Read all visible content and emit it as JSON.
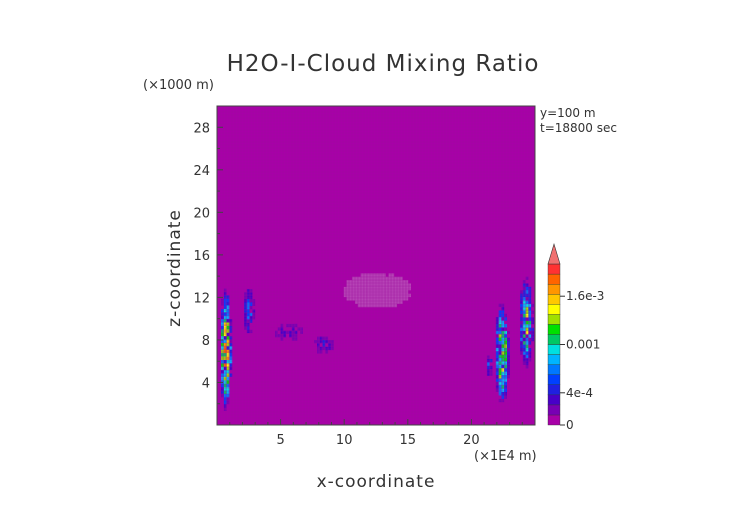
{
  "chart_data": {
    "type": "heatmap",
    "title": "H2O-I-Cloud Mixing Ratio",
    "xlabel": "x-coordinate",
    "ylabel": "z-coordinate",
    "x_unit": "(×1E4 m)",
    "y_unit": "(×1000 m)",
    "annotations": [
      "y=100 m",
      "t=18800 sec"
    ],
    "xlim": [
      0,
      25
    ],
    "ylim": [
      0,
      30
    ],
    "x_ticks": [
      5,
      10,
      15,
      20
    ],
    "y_ticks": [
      4,
      8,
      12,
      16,
      20,
      24,
      28
    ],
    "grid": false,
    "colorbar": {
      "tick_labels": [
        "0",
        "4e-4",
        "0.001",
        "1.6e-3"
      ],
      "tick_values": [
        0,
        0.0004,
        0.001,
        0.0016
      ],
      "max": 0.002,
      "colors": [
        "#a800a8",
        "#7800b4",
        "#4800c8",
        "#2020e0",
        "#0040ff",
        "#0078ff",
        "#00b4ff",
        "#00e0e0",
        "#00c864",
        "#00e000",
        "#a0e000",
        "#ffff00",
        "#ffc800",
        "#ff9600",
        "#ff6400",
        "#ff3232"
      ],
      "extend_color": "#f07070"
    },
    "background_color": "#a800a8",
    "regions": [
      {
        "name": "left-edge-column",
        "x": 0.6,
        "z": 7,
        "width": 1.0,
        "height": 12,
        "peak": 0.0016
      },
      {
        "name": "column-x3",
        "x": 2.4,
        "z": 10.5,
        "width": 1.0,
        "height": 5,
        "peak": 0.0006
      },
      {
        "name": "layer-x5",
        "x": 5.5,
        "z": 8.6,
        "width": 3.2,
        "height": 2.0,
        "peak": 0.0003
      },
      {
        "name": "layer-x8",
        "x": 8.2,
        "z": 7.4,
        "width": 2.0,
        "height": 2.0,
        "peak": 0.0004
      },
      {
        "name": "faint-cloud-x12",
        "x": 12.5,
        "z": 12.5,
        "width": 5.5,
        "height": 3.5,
        "peak": 3e-05
      },
      {
        "name": "right-column-x22",
        "x": 22.3,
        "z": 6.5,
        "width": 1.2,
        "height": 10,
        "peak": 0.0014
      },
      {
        "name": "right-edge-column",
        "x": 24.2,
        "z": 9.5,
        "width": 1.2,
        "height": 9,
        "peak": 0.0012
      },
      {
        "name": "small-cell-x21",
        "x": 21.3,
        "z": 5.4,
        "width": 0.6,
        "height": 2.2,
        "peak": 0.0007
      }
    ]
  }
}
